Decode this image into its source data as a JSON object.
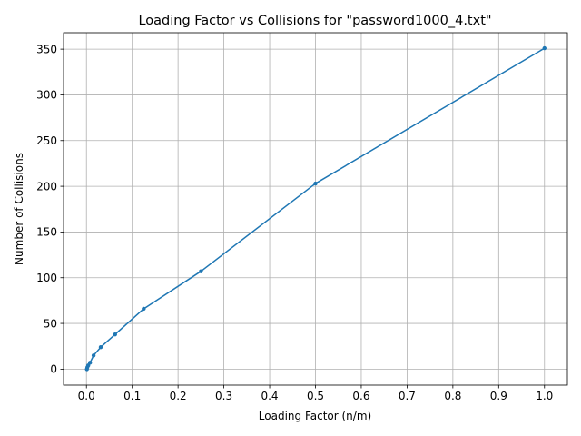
{
  "chart_data": {
    "type": "line",
    "title": "Loading Factor vs Collisions for \"password1000_4.txt\"",
    "xlabel": "Loading Factor (n/m)",
    "ylabel": "Number of Collisions",
    "xlim": [
      -0.05,
      1.05
    ],
    "ylim": [
      -17.5,
      368
    ],
    "xticks": [
      0.0,
      0.1,
      0.2,
      0.3,
      0.4,
      0.5,
      0.6,
      0.7,
      0.8,
      0.9,
      1.0
    ],
    "xtick_labels": [
      "0.0",
      "0.1",
      "0.2",
      "0.3",
      "0.4",
      "0.5",
      "0.6",
      "0.7",
      "0.8",
      "0.9",
      "1.0"
    ],
    "yticks": [
      0,
      50,
      100,
      150,
      200,
      250,
      300,
      350
    ],
    "ytick_labels": [
      "0",
      "50",
      "100",
      "150",
      "200",
      "250",
      "300",
      "350"
    ],
    "grid": true,
    "series": [
      {
        "color": "#1f77b4",
        "marker": "circle",
        "x": [
          0.000977,
          0.001953,
          0.003906,
          0.007813,
          0.015625,
          0.03125,
          0.0625,
          0.125,
          0.25,
          0.5,
          1.0
        ],
        "y": [
          0,
          2,
          4,
          7,
          15,
          24,
          38,
          66,
          107,
          203,
          351
        ]
      }
    ]
  }
}
